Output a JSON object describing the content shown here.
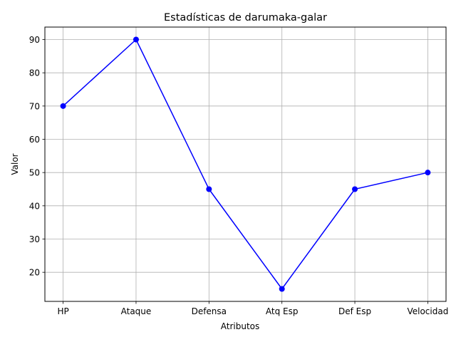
{
  "chart_data": {
    "type": "line",
    "title": "Estadísticas de darumaka-galar",
    "xlabel": "Atributos",
    "ylabel": "Valor",
    "categories": [
      "HP",
      "Ataque",
      "Defensa",
      "Atq Esp",
      "Def Esp",
      "Velocidad"
    ],
    "series": [
      {
        "values": [
          70,
          90,
          45,
          15,
          45,
          50
        ],
        "color": "#0000ff",
        "marker": "circle"
      }
    ],
    "yticks": [
      20,
      30,
      40,
      50,
      60,
      70,
      80,
      90
    ],
    "ylim": [
      11.25,
      93.75
    ],
    "grid": true,
    "legend": "none"
  }
}
